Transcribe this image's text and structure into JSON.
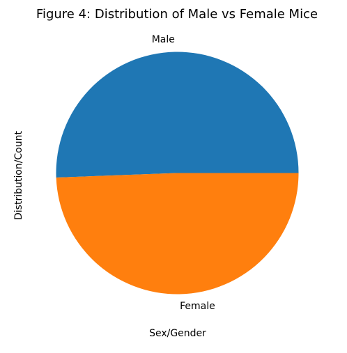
{
  "chart_data": {
    "type": "pie",
    "title": "Figure 4: Distribution of Male vs Female Mice",
    "xlabel": "Sex/Gender",
    "ylabel": "Distribution/Count",
    "labels": [
      "Male",
      "Female"
    ],
    "values": [
      50.6,
      49.4
    ],
    "colors": [
      "#1f77b4",
      "#ff7f0e"
    ],
    "start_angle": 0,
    "direction": "counterclockwise",
    "legend": "none"
  }
}
